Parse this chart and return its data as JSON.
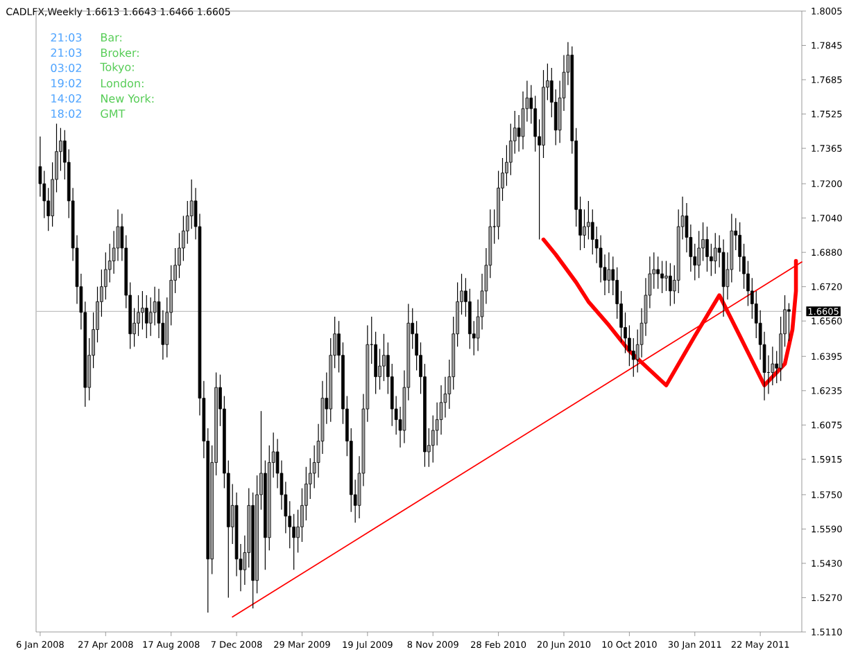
{
  "chart_data": {
    "type": "candlestick",
    "title": "CADLFX,Weekly 1.6613 1.6643 1.6466 1.6605",
    "annotations": [
      "21:03",
      "Bar:",
      "21:03",
      "Broker:",
      "03:02",
      "Tokyo:",
      "19:02",
      "London:",
      "14:02",
      "New York:",
      "18:02",
      "GMT"
    ],
    "xlim": [
      "2007-12-30",
      "2011-08-01"
    ],
    "xticks": [
      {
        "value": "2008-01-06",
        "label": "6 Jan 2008"
      },
      {
        "value": "2008-04-27",
        "label": "27 Apr 2008"
      },
      {
        "value": "2008-08-17",
        "label": "17 Aug 2008"
      },
      {
        "value": "2008-12-07",
        "label": "7 Dec 2008"
      },
      {
        "value": "2009-03-29",
        "label": "29 Mar 2009"
      },
      {
        "value": "2009-07-19",
        "label": "19 Jul 2009"
      },
      {
        "value": "2009-11-08",
        "label": "8 Nov 2009"
      },
      {
        "value": "2010-02-28",
        "label": "28 Feb 2010"
      },
      {
        "value": "2010-06-20",
        "label": "20 Jun 2010"
      },
      {
        "value": "2010-10-10",
        "label": "10 Oct 2010"
      },
      {
        "value": "2011-01-30",
        "label": "30 Jan 2011"
      },
      {
        "value": "2011-05-22",
        "label": "22 May 2011"
      }
    ],
    "ylim": [
      1.511,
      1.8005
    ],
    "yticks": [
      {
        "value": 1.511,
        "label": "1.5110"
      },
      {
        "value": 1.527,
        "label": "1.5270"
      },
      {
        "value": 1.543,
        "label": "1.5430"
      },
      {
        "value": 1.559,
        "label": "1.5590"
      },
      {
        "value": 1.575,
        "label": "1.5750"
      },
      {
        "value": 1.5915,
        "label": "1.5915"
      },
      {
        "value": 1.6075,
        "label": "1.6075"
      },
      {
        "value": 1.6235,
        "label": "1.6235"
      },
      {
        "value": 1.6395,
        "label": "1.6395"
      },
      {
        "value": 1.656,
        "label": "1.6560"
      },
      {
        "value": 1.672,
        "label": "1.6720"
      },
      {
        "value": 1.688,
        "label": "1.6880"
      },
      {
        "value": 1.704,
        "label": "1.7040"
      },
      {
        "value": 1.72,
        "label": "1.7200"
      },
      {
        "value": 1.7365,
        "label": "1.7365"
      },
      {
        "value": 1.7525,
        "label": "1.7525"
      },
      {
        "value": 1.7685,
        "label": "1.7685"
      },
      {
        "value": 1.7845,
        "label": "1.7845"
      },
      {
        "value": 1.8005,
        "label": "1.8005"
      }
    ],
    "ref_lines": [
      {
        "axis": "y",
        "value": 1.6605,
        "label": "1.6605",
        "color": "#c0c0c0"
      }
    ],
    "x": [
      "2008-01-06",
      "2008-01-13",
      "2008-01-20",
      "2008-01-27",
      "2008-02-03",
      "2008-02-10",
      "2008-02-17",
      "2008-02-24",
      "2008-03-02",
      "2008-03-09",
      "2008-03-16",
      "2008-03-23",
      "2008-03-30",
      "2008-04-06",
      "2008-04-13",
      "2008-04-20",
      "2008-04-27",
      "2008-05-04",
      "2008-05-11",
      "2008-05-18",
      "2008-05-25",
      "2008-06-01",
      "2008-06-08",
      "2008-06-15",
      "2008-06-22",
      "2008-06-29",
      "2008-07-06",
      "2008-07-13",
      "2008-07-20",
      "2008-07-27",
      "2008-08-03",
      "2008-08-10",
      "2008-08-17",
      "2008-08-24",
      "2008-08-31",
      "2008-09-07",
      "2008-09-14",
      "2008-09-21",
      "2008-09-28",
      "2008-10-05",
      "2008-10-12",
      "2008-10-19",
      "2008-10-26",
      "2008-11-02",
      "2008-11-09",
      "2008-11-16",
      "2008-11-23",
      "2008-11-30",
      "2008-12-07",
      "2008-12-14",
      "2008-12-21",
      "2008-12-28",
      "2009-01-04",
      "2009-01-11",
      "2009-01-18",
      "2009-01-25",
      "2009-02-01",
      "2009-02-08",
      "2009-02-15",
      "2009-02-22",
      "2009-03-01",
      "2009-03-08",
      "2009-03-15",
      "2009-03-22",
      "2009-03-29",
      "2009-04-05",
      "2009-04-12",
      "2009-04-19",
      "2009-04-26",
      "2009-05-03",
      "2009-05-10",
      "2009-05-17",
      "2009-05-24",
      "2009-05-31",
      "2009-06-07",
      "2009-06-14",
      "2009-06-21",
      "2009-06-28",
      "2009-07-05",
      "2009-07-12",
      "2009-07-19",
      "2009-07-26",
      "2009-08-02",
      "2009-08-09",
      "2009-08-16",
      "2009-08-23",
      "2009-08-30",
      "2009-09-06",
      "2009-09-13",
      "2009-09-20",
      "2009-09-27",
      "2009-10-04",
      "2009-10-11",
      "2009-10-18",
      "2009-10-25",
      "2009-11-01",
      "2009-11-08",
      "2009-11-15",
      "2009-11-22",
      "2009-11-29",
      "2009-12-06",
      "2009-12-13",
      "2009-12-20",
      "2009-12-27",
      "2010-01-03",
      "2010-01-10",
      "2010-01-17",
      "2010-01-24",
      "2010-01-31",
      "2010-02-07",
      "2010-02-14",
      "2010-02-21",
      "2010-02-28",
      "2010-03-07",
      "2010-03-14",
      "2010-03-21",
      "2010-03-28",
      "2010-04-04",
      "2010-04-11",
      "2010-04-18",
      "2010-04-25",
      "2010-05-02",
      "2010-05-09",
      "2010-05-16",
      "2010-05-23",
      "2010-05-30",
      "2010-06-06",
      "2010-06-13",
      "2010-06-20",
      "2010-06-27",
      "2010-07-04",
      "2010-07-11",
      "2010-07-18",
      "2010-07-25",
      "2010-08-01",
      "2010-08-08",
      "2010-08-15",
      "2010-08-22",
      "2010-08-29",
      "2010-09-05",
      "2010-09-12",
      "2010-09-19",
      "2010-09-26",
      "2010-10-03",
      "2010-10-10",
      "2010-10-17",
      "2010-10-24",
      "2010-10-31",
      "2010-11-07",
      "2010-11-14",
      "2010-11-21",
      "2010-11-28",
      "2010-12-05",
      "2010-12-12",
      "2010-12-19",
      "2010-12-26",
      "2011-01-02",
      "2011-01-09",
      "2011-01-16",
      "2011-01-23",
      "2011-01-30",
      "2011-02-06",
      "2011-02-13",
      "2011-02-20",
      "2011-02-27",
      "2011-03-06",
      "2011-03-13",
      "2011-03-20",
      "2011-03-27",
      "2011-04-03",
      "2011-04-10",
      "2011-04-17",
      "2011-04-24",
      "2011-05-01",
      "2011-05-08",
      "2011-05-15",
      "2011-05-22",
      "2011-05-29",
      "2011-06-05",
      "2011-06-12",
      "2011-06-19",
      "2011-06-26",
      "2011-07-03",
      "2011-07-10"
    ],
    "ohlc": [
      [
        1.728,
        1.742,
        1.714,
        1.72
      ],
      [
        1.72,
        1.726,
        1.704,
        1.712
      ],
      [
        1.712,
        1.718,
        1.698,
        1.705
      ],
      [
        1.705,
        1.73,
        1.7,
        1.722
      ],
      [
        1.722,
        1.748,
        1.716,
        1.735
      ],
      [
        1.735,
        1.746,
        1.726,
        1.74
      ],
      [
        1.74,
        1.745,
        1.722,
        1.73
      ],
      [
        1.73,
        1.736,
        1.704,
        1.712
      ],
      [
        1.712,
        1.718,
        1.684,
        1.69
      ],
      [
        1.69,
        1.696,
        1.664,
        1.672
      ],
      [
        1.672,
        1.678,
        1.652,
        1.66
      ],
      [
        1.66,
        1.665,
        1.616,
        1.625
      ],
      [
        1.625,
        1.648,
        1.619,
        1.64
      ],
      [
        1.64,
        1.66,
        1.634,
        1.652
      ],
      [
        1.652,
        1.672,
        1.646,
        1.665
      ],
      [
        1.665,
        1.68,
        1.658,
        1.672
      ],
      [
        1.672,
        1.688,
        1.666,
        1.68
      ],
      [
        1.68,
        1.692,
        1.674,
        1.684
      ],
      [
        1.684,
        1.698,
        1.678,
        1.69
      ],
      [
        1.69,
        1.708,
        1.684,
        1.7
      ],
      [
        1.7,
        1.706,
        1.684,
        1.69
      ],
      [
        1.69,
        1.696,
        1.662,
        1.668
      ],
      [
        1.668,
        1.674,
        1.643,
        1.65
      ],
      [
        1.65,
        1.662,
        1.644,
        1.655
      ],
      [
        1.655,
        1.668,
        1.649,
        1.66
      ],
      [
        1.66,
        1.67,
        1.652,
        1.662
      ],
      [
        1.662,
        1.668,
        1.648,
        1.655
      ],
      [
        1.655,
        1.667,
        1.649,
        1.66
      ],
      [
        1.66,
        1.672,
        1.654,
        1.665
      ],
      [
        1.665,
        1.671,
        1.648,
        1.655
      ],
      [
        1.655,
        1.661,
        1.638,
        1.645
      ],
      [
        1.645,
        1.667,
        1.639,
        1.66
      ],
      [
        1.66,
        1.682,
        1.654,
        1.675
      ],
      [
        1.675,
        1.69,
        1.669,
        1.682
      ],
      [
        1.682,
        1.697,
        1.676,
        1.69
      ],
      [
        1.69,
        1.705,
        1.684,
        1.698
      ],
      [
        1.698,
        1.712,
        1.692,
        1.705
      ],
      [
        1.705,
        1.722,
        1.699,
        1.712
      ],
      [
        1.712,
        1.718,
        1.694,
        1.7
      ],
      [
        1.7,
        1.706,
        1.612,
        1.62
      ],
      [
        1.62,
        1.628,
        1.592,
        1.6
      ],
      [
        1.6,
        1.606,
        1.52,
        1.545
      ],
      [
        1.545,
        1.598,
        1.538,
        1.59
      ],
      [
        1.59,
        1.632,
        1.584,
        1.625
      ],
      [
        1.625,
        1.631,
        1.607,
        1.615
      ],
      [
        1.615,
        1.621,
        1.578,
        1.585
      ],
      [
        1.585,
        1.591,
        1.527,
        1.56
      ],
      [
        1.56,
        1.58,
        1.552,
        1.57
      ],
      [
        1.57,
        1.576,
        1.537,
        1.545
      ],
      [
        1.545,
        1.552,
        1.53,
        1.54
      ],
      [
        1.54,
        1.556,
        1.533,
        1.548
      ],
      [
        1.548,
        1.578,
        1.541,
        1.57
      ],
      [
        1.57,
        1.576,
        1.522,
        1.535
      ],
      [
        1.535,
        1.584,
        1.529,
        1.575
      ],
      [
        1.575,
        1.614,
        1.568,
        1.585
      ],
      [
        1.585,
        1.591,
        1.54,
        1.555
      ],
      [
        1.555,
        1.598,
        1.549,
        1.59
      ],
      [
        1.59,
        1.604,
        1.583,
        1.595
      ],
      [
        1.595,
        1.601,
        1.578,
        1.585
      ],
      [
        1.585,
        1.591,
        1.568,
        1.575
      ],
      [
        1.575,
        1.581,
        1.557,
        1.565
      ],
      [
        1.565,
        1.572,
        1.55,
        1.56
      ],
      [
        1.56,
        1.566,
        1.54,
        1.555
      ],
      [
        1.555,
        1.568,
        1.548,
        1.56
      ],
      [
        1.56,
        1.578,
        1.553,
        1.57
      ],
      [
        1.57,
        1.588,
        1.563,
        1.58
      ],
      [
        1.58,
        1.592,
        1.573,
        1.585
      ],
      [
        1.585,
        1.598,
        1.578,
        1.59
      ],
      [
        1.59,
        1.608,
        1.583,
        1.6
      ],
      [
        1.6,
        1.628,
        1.594,
        1.62
      ],
      [
        1.62,
        1.632,
        1.608,
        1.615
      ],
      [
        1.615,
        1.648,
        1.609,
        1.64
      ],
      [
        1.64,
        1.658,
        1.634,
        1.65
      ],
      [
        1.65,
        1.656,
        1.632,
        1.64
      ],
      [
        1.64,
        1.646,
        1.608,
        1.615
      ],
      [
        1.615,
        1.621,
        1.593,
        1.6
      ],
      [
        1.6,
        1.606,
        1.567,
        1.575
      ],
      [
        1.575,
        1.582,
        1.562,
        1.57
      ],
      [
        1.57,
        1.593,
        1.564,
        1.585
      ],
      [
        1.585,
        1.622,
        1.579,
        1.615
      ],
      [
        1.615,
        1.654,
        1.609,
        1.645
      ],
      [
        1.645,
        1.658,
        1.636,
        1.645
      ],
      [
        1.645,
        1.651,
        1.622,
        1.63
      ],
      [
        1.63,
        1.643,
        1.624,
        1.635
      ],
      [
        1.635,
        1.65,
        1.628,
        1.64
      ],
      [
        1.64,
        1.646,
        1.622,
        1.63
      ],
      [
        1.63,
        1.636,
        1.607,
        1.615
      ],
      [
        1.615,
        1.621,
        1.603,
        1.61
      ],
      [
        1.61,
        1.616,
        1.597,
        1.605
      ],
      [
        1.605,
        1.633,
        1.599,
        1.625
      ],
      [
        1.625,
        1.664,
        1.619,
        1.655
      ],
      [
        1.655,
        1.662,
        1.643,
        1.65
      ],
      [
        1.65,
        1.656,
        1.633,
        1.64
      ],
      [
        1.64,
        1.646,
        1.622,
        1.63
      ],
      [
        1.63,
        1.636,
        1.588,
        1.595
      ],
      [
        1.595,
        1.606,
        1.588,
        1.598
      ],
      [
        1.598,
        1.612,
        1.59,
        1.605
      ],
      [
        1.605,
        1.618,
        1.598,
        1.61
      ],
      [
        1.61,
        1.626,
        1.603,
        1.618
      ],
      [
        1.618,
        1.63,
        1.611,
        1.622
      ],
      [
        1.622,
        1.638,
        1.615,
        1.63
      ],
      [
        1.63,
        1.658,
        1.624,
        1.65
      ],
      [
        1.65,
        1.674,
        1.644,
        1.665
      ],
      [
        1.665,
        1.678,
        1.659,
        1.67
      ],
      [
        1.67,
        1.676,
        1.658,
        1.665
      ],
      [
        1.665,
        1.671,
        1.643,
        1.65
      ],
      [
        1.65,
        1.656,
        1.64,
        1.648
      ],
      [
        1.648,
        1.666,
        1.642,
        1.658
      ],
      [
        1.658,
        1.678,
        1.652,
        1.67
      ],
      [
        1.67,
        1.69,
        1.664,
        1.682
      ],
      [
        1.682,
        1.708,
        1.676,
        1.7
      ],
      [
        1.7,
        1.708,
        1.692,
        1.7
      ],
      [
        1.7,
        1.726,
        1.694,
        1.718
      ],
      [
        1.718,
        1.732,
        1.712,
        1.725
      ],
      [
        1.725,
        1.738,
        1.719,
        1.73
      ],
      [
        1.73,
        1.748,
        1.724,
        1.74
      ],
      [
        1.74,
        1.754,
        1.734,
        1.746
      ],
      [
        1.746,
        1.752,
        1.735,
        1.742
      ],
      [
        1.742,
        1.763,
        1.736,
        1.755
      ],
      [
        1.755,
        1.768,
        1.749,
        1.76
      ],
      [
        1.76,
        1.766,
        1.748,
        1.755
      ],
      [
        1.755,
        1.761,
        1.735,
        1.742
      ],
      [
        1.742,
        1.75,
        1.694,
        1.738
      ],
      [
        1.738,
        1.773,
        1.732,
        1.765
      ],
      [
        1.765,
        1.776,
        1.759,
        1.768
      ],
      [
        1.768,
        1.774,
        1.751,
        1.758
      ],
      [
        1.758,
        1.764,
        1.738,
        1.745
      ],
      [
        1.745,
        1.768,
        1.739,
        1.76
      ],
      [
        1.76,
        1.78,
        1.754,
        1.772
      ],
      [
        1.772,
        1.786,
        1.766,
        1.78
      ],
      [
        1.78,
        1.784,
        1.734,
        1.74
      ],
      [
        1.74,
        1.746,
        1.7,
        1.708
      ],
      [
        1.708,
        1.714,
        1.689,
        1.696
      ],
      [
        1.696,
        1.708,
        1.69,
        1.7
      ],
      [
        1.7,
        1.712,
        1.694,
        1.702
      ],
      [
        1.702,
        1.708,
        1.687,
        1.694
      ],
      [
        1.694,
        1.7,
        1.683,
        1.69
      ],
      [
        1.69,
        1.696,
        1.674,
        1.681
      ],
      [
        1.681,
        1.687,
        1.668,
        1.675
      ],
      [
        1.675,
        1.688,
        1.669,
        1.68
      ],
      [
        1.68,
        1.686,
        1.668,
        1.675
      ],
      [
        1.675,
        1.681,
        1.657,
        1.664
      ],
      [
        1.664,
        1.67,
        1.646,
        1.653
      ],
      [
        1.653,
        1.66,
        1.641,
        1.648
      ],
      [
        1.648,
        1.654,
        1.635,
        1.642
      ],
      [
        1.642,
        1.648,
        1.63,
        1.638
      ],
      [
        1.638,
        1.652,
        1.632,
        1.645
      ],
      [
        1.645,
        1.662,
        1.639,
        1.655
      ],
      [
        1.655,
        1.676,
        1.649,
        1.668
      ],
      [
        1.668,
        1.686,
        1.662,
        1.678
      ],
      [
        1.678,
        1.688,
        1.671,
        1.68
      ],
      [
        1.68,
        1.686,
        1.671,
        1.678
      ],
      [
        1.678,
        1.684,
        1.669,
        1.676
      ],
      [
        1.676,
        1.684,
        1.67,
        1.677
      ],
      [
        1.677,
        1.683,
        1.663,
        1.67
      ],
      [
        1.67,
        1.682,
        1.664,
        1.675
      ],
      [
        1.675,
        1.708,
        1.669,
        1.7
      ],
      [
        1.7,
        1.714,
        1.694,
        1.705
      ],
      [
        1.705,
        1.711,
        1.688,
        1.695
      ],
      [
        1.695,
        1.701,
        1.679,
        1.686
      ],
      [
        1.686,
        1.692,
        1.675,
        1.682
      ],
      [
        1.682,
        1.698,
        1.676,
        1.69
      ],
      [
        1.69,
        1.702,
        1.684,
        1.694
      ],
      [
        1.694,
        1.7,
        1.679,
        1.686
      ],
      [
        1.686,
        1.692,
        1.677,
        1.684
      ],
      [
        1.684,
        1.697,
        1.678,
        1.69
      ],
      [
        1.69,
        1.696,
        1.681,
        1.688
      ],
      [
        1.688,
        1.694,
        1.658,
        1.672
      ],
      [
        1.672,
        1.688,
        1.666,
        1.68
      ],
      [
        1.68,
        1.706,
        1.674,
        1.698
      ],
      [
        1.698,
        1.704,
        1.689,
        1.696
      ],
      [
        1.696,
        1.702,
        1.679,
        1.686
      ],
      [
        1.686,
        1.692,
        1.671,
        1.678
      ],
      [
        1.678,
        1.684,
        1.663,
        1.67
      ],
      [
        1.67,
        1.676,
        1.657,
        1.664
      ],
      [
        1.664,
        1.67,
        1.648,
        1.655
      ],
      [
        1.655,
        1.661,
        1.638,
        1.645
      ],
      [
        1.645,
        1.651,
        1.619,
        1.632
      ],
      [
        1.632,
        1.64,
        1.622,
        1.632
      ],
      [
        1.632,
        1.644,
        1.626,
        1.636
      ],
      [
        1.636,
        1.642,
        1.627,
        1.634
      ],
      [
        1.634,
        1.658,
        1.628,
        1.65
      ],
      [
        1.65,
        1.668,
        1.644,
        1.6613
      ],
      [
        1.6613,
        1.6643,
        1.6466,
        1.6605
      ]
    ],
    "series": [
      {
        "type": "line",
        "color": "#ff0000",
        "x": [
          "2008-11-30",
          "2011-08-01"
        ],
        "values": [
          1.518,
          1.6835
        ]
      },
      {
        "type": "line",
        "color": "#ff0000",
        "x": [
          "2010-05-16",
          "2010-06-06",
          "2010-07-11",
          "2010-08-01",
          "2010-09-05",
          "2010-10-10",
          "2010-12-12",
          "2011-01-30",
          "2011-03-13",
          "2011-04-17",
          "2011-05-29",
          "2011-07-03",
          "2011-07-16",
          "2011-07-22",
          "2011-07-22"
        ],
        "values": [
          1.694,
          1.687,
          1.674,
          1.665,
          1.654,
          1.642,
          1.626,
          1.649,
          1.668,
          1.649,
          1.626,
          1.636,
          1.652,
          1.67,
          1.684
        ]
      }
    ]
  }
}
